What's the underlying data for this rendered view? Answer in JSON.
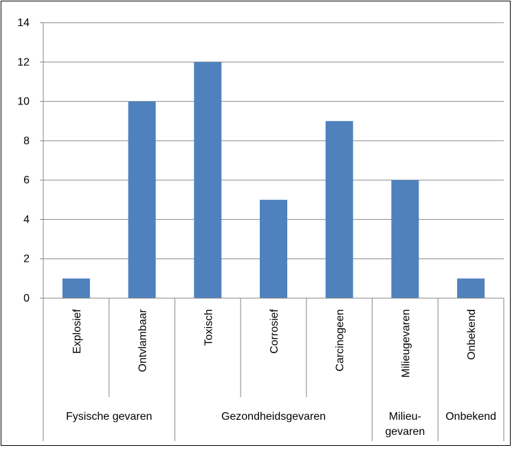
{
  "chart_data": {
    "type": "bar",
    "title": "",
    "xlabel": "",
    "ylabel": "",
    "ylim": [
      0,
      14
    ],
    "yticks": [
      0,
      2,
      4,
      6,
      8,
      10,
      12,
      14
    ],
    "grid": true,
    "legend": "none",
    "categories": [
      "Explosief",
      "Ontvlambaar",
      "Toxisch",
      "Corrosief",
      "Carcinogeen",
      "Milieugevaren",
      "Onbekend"
    ],
    "values": [
      1,
      10,
      12,
      5,
      9,
      6,
      1
    ],
    "groups": [
      {
        "label": "Fysische gevaren",
        "count": 2
      },
      {
        "label": "Gezondheidsgevaren",
        "count": 3
      },
      {
        "label": "Milieu-\ngevaren",
        "count": 1
      },
      {
        "label": "Onbekend",
        "count": 1
      }
    ],
    "colors": {
      "bar": "#4F81BD",
      "grid": "#868686",
      "axis": "#868686",
      "frame": "#000000"
    }
  }
}
